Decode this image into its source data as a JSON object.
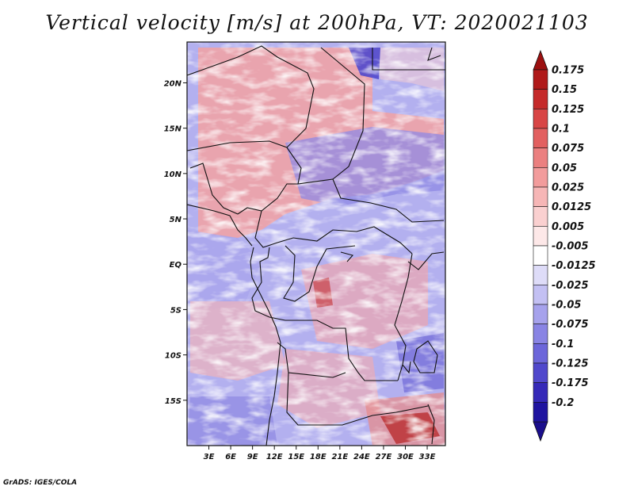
{
  "title": "Vertical velocity [m/s] at 200hPa, VT: 2020021103",
  "credit": "GrADS: IGES/COLA",
  "map": {
    "lon_range": [
      0,
      35.5
    ],
    "lat_range": [
      -20,
      24.5
    ],
    "lat_ticks": [
      {
        "label": "20N",
        "value": 20
      },
      {
        "label": "15N",
        "value": 15
      },
      {
        "label": "10N",
        "value": 10
      },
      {
        "label": "5N",
        "value": 5
      },
      {
        "label": "EQ",
        "value": 0
      },
      {
        "label": "5S",
        "value": -5
      },
      {
        "label": "10S",
        "value": -10
      },
      {
        "label": "15S",
        "value": -15
      }
    ],
    "lon_ticks": [
      {
        "label": "3E",
        "value": 3
      },
      {
        "label": "6E",
        "value": 6
      },
      {
        "label": "9E",
        "value": 9
      },
      {
        "label": "12E",
        "value": 12
      },
      {
        "label": "15E",
        "value": 15
      },
      {
        "label": "18E",
        "value": 18
      },
      {
        "label": "21E",
        "value": 21
      },
      {
        "label": "24E",
        "value": 24
      },
      {
        "label": "27E",
        "value": 27
      },
      {
        "label": "30E",
        "value": 30
      },
      {
        "label": "33E",
        "value": 33
      }
    ]
  },
  "colorbar": {
    "levels": [
      {
        "label": "0.175",
        "color": "#b01a1a"
      },
      {
        "label": "0.15",
        "color": "#c52a2a"
      },
      {
        "label": "0.125",
        "color": "#d84545"
      },
      {
        "label": "0.1",
        "color": "#e26060"
      },
      {
        "label": "0.075",
        "color": "#eb8080"
      },
      {
        "label": "0.05",
        "color": "#f29c9c"
      },
      {
        "label": "0.025",
        "color": "#f6b6b6"
      },
      {
        "label": "0.0125",
        "color": "#fad0d0"
      },
      {
        "label": "0.005",
        "color": "#fde8e8"
      },
      {
        "label": "-0.005",
        "color": "#ffffff"
      },
      {
        "label": "-0.0125",
        "color": "#dedcf8"
      },
      {
        "label": "-0.025",
        "color": "#c3c0f3"
      },
      {
        "label": "-0.05",
        "color": "#a6a2ec"
      },
      {
        "label": "-0.075",
        "color": "#8984e4"
      },
      {
        "label": "-0.1",
        "color": "#6c66da"
      },
      {
        "label": "-0.125",
        "color": "#5048cc"
      },
      {
        "label": "-0.175",
        "color": "#3529b8"
      },
      {
        "label": "-0.2",
        "color": "#1f14a0"
      }
    ],
    "top_arrow_color": "#9c1010",
    "bottom_arrow_color": "#1a0e8c"
  }
}
